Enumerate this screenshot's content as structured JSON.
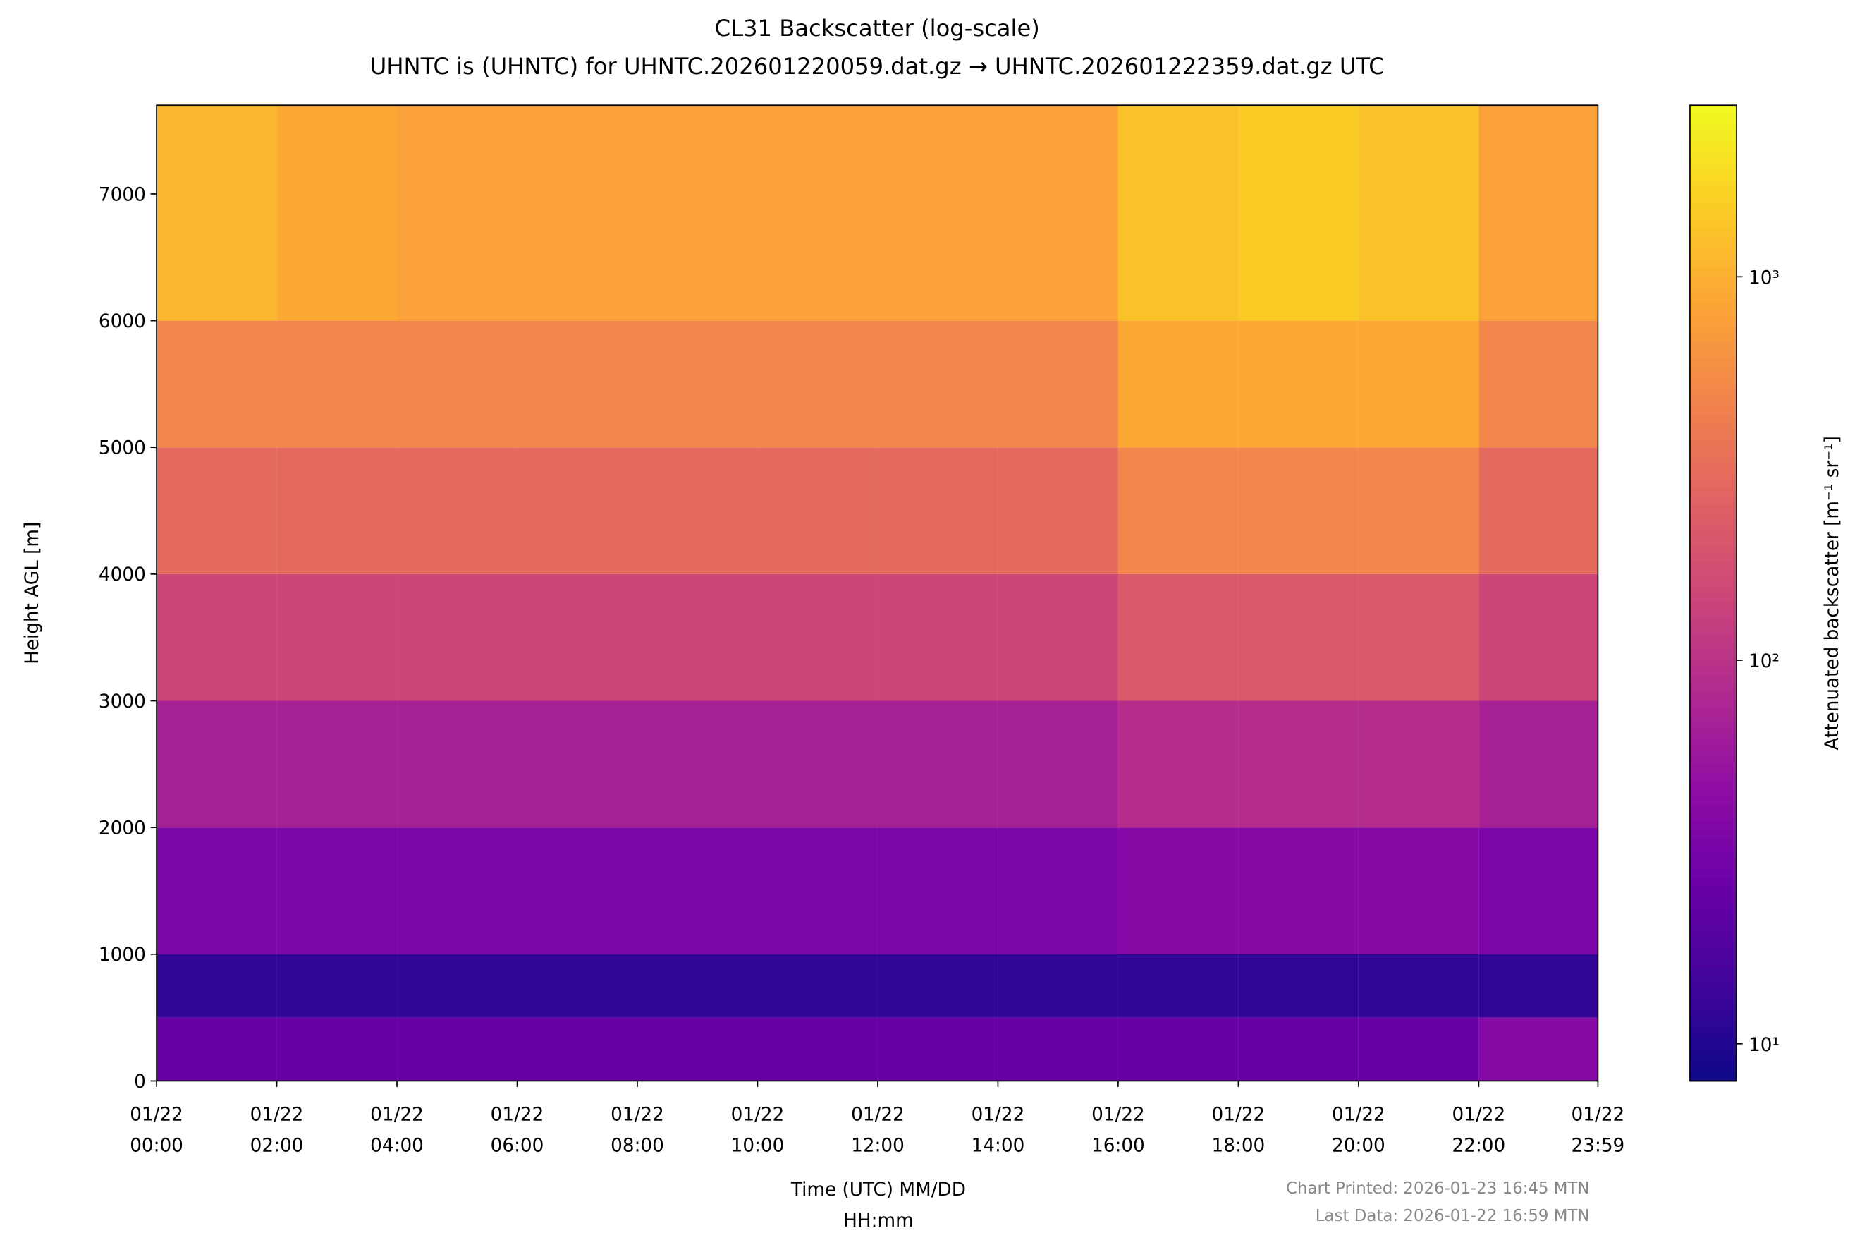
{
  "chart_data": {
    "type": "heatmap",
    "title": "CL31 Backscatter (log-scale)",
    "subtitle": "UHNTC is (UHNTC) for UHNTC.202601220059.dat.gz → UHNTC.202601222359.dat.gz UTC",
    "x_label": "Time (UTC) MM/DD\nHH:mm",
    "y_label": "Height AGL [m]",
    "colorbar_label": "Attenuated backscatter [m⁻¹ sr⁻¹]",
    "annotations": [
      "Chart Printed: 2026-01-23 16:45 MTN",
      "Last Data: 2026-01-22 16:59 MTN"
    ],
    "colormap": "plasma",
    "color_scale": "log",
    "x_bins": [
      0,
      2,
      4,
      6,
      8,
      10,
      12,
      14,
      16,
      18,
      20,
      22,
      23.983
    ],
    "y_bins": [
      0,
      500,
      1000,
      2000,
      3000,
      4000,
      5000,
      6000,
      7700
    ],
    "values": [
      [
        25,
        25,
        25,
        25,
        25,
        25,
        25,
        25,
        25,
        25,
        25,
        40
      ],
      [
        12,
        12,
        12,
        12,
        12,
        12,
        12,
        12,
        12,
        12,
        12,
        12
      ],
      [
        35,
        35,
        35,
        35,
        35,
        35,
        35,
        35,
        40,
        40,
        40,
        35
      ],
      [
        70,
        70,
        70,
        70,
        70,
        70,
        70,
        70,
        90,
        90,
        90,
        70
      ],
      [
        150,
        150,
        150,
        150,
        150,
        150,
        150,
        150,
        220,
        220,
        220,
        150
      ],
      [
        300,
        300,
        300,
        300,
        300,
        300,
        300,
        300,
        500,
        500,
        500,
        300
      ],
      [
        500,
        500,
        500,
        500,
        500,
        500,
        500,
        500,
        900,
        900,
        900,
        500
      ],
      [
        1100,
        900,
        800,
        800,
        800,
        800,
        800,
        800,
        1300,
        1500,
        1300,
        800
      ]
    ],
    "xlim": [
      0,
      23.983
    ],
    "xticks": [
      {
        "value": 0,
        "label": "01/22\n00:00"
      },
      {
        "value": 2,
        "label": "01/22\n02:00"
      },
      {
        "value": 4,
        "label": "01/22\n04:00"
      },
      {
        "value": 6,
        "label": "01/22\n06:00"
      },
      {
        "value": 8,
        "label": "01/22\n08:00"
      },
      {
        "value": 10,
        "label": "01/22\n10:00"
      },
      {
        "value": 12,
        "label": "01/22\n12:00"
      },
      {
        "value": 14,
        "label": "01/22\n14:00"
      },
      {
        "value": 16,
        "label": "01/22\n16:00"
      },
      {
        "value": 18,
        "label": "01/22\n18:00"
      },
      {
        "value": 20,
        "label": "01/22\n20:00"
      },
      {
        "value": 22,
        "label": "01/22\n22:00"
      },
      {
        "value": 23.983,
        "label": "01/22\n23:59"
      }
    ],
    "ylim": [
      0,
      7700
    ],
    "yticks": [
      0,
      1000,
      2000,
      3000,
      4000,
      5000,
      6000,
      7000
    ],
    "clim": [
      8,
      2800
    ],
    "cticks": [
      {
        "value": 10,
        "label": "10¹"
      },
      {
        "value": 100,
        "label": "10²"
      },
      {
        "value": 1000,
        "label": "10³"
      }
    ]
  }
}
